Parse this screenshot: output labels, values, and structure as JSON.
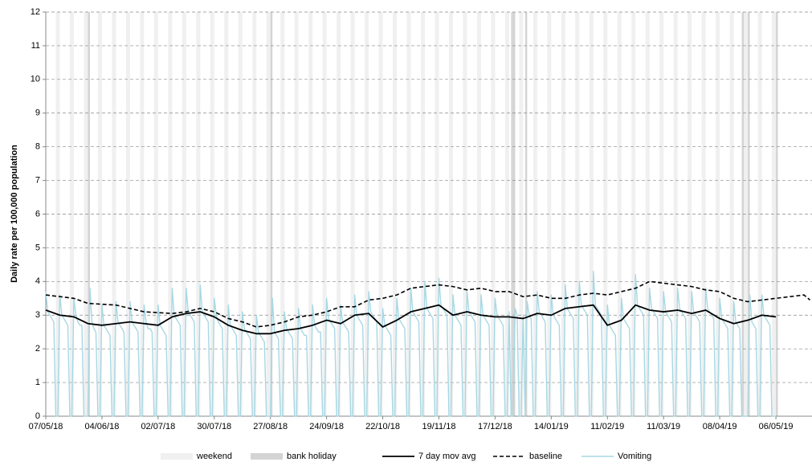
{
  "chart_data": {
    "type": "line",
    "y_label": "Daily rate per 100,000 population",
    "xlim": [
      0,
      382
    ],
    "ylim": [
      0,
      12
    ],
    "yticks": [
      0,
      1,
      2,
      3,
      4,
      5,
      6,
      7,
      8,
      9,
      10,
      11,
      12
    ],
    "xticks": [
      {
        "value": 0,
        "label": "07/05/18"
      },
      {
        "value": 28,
        "label": "04/06/18"
      },
      {
        "value": 56,
        "label": "02/07/18"
      },
      {
        "value": 84,
        "label": "30/07/18"
      },
      {
        "value": 112,
        "label": "27/08/18"
      },
      {
        "value": 140,
        "label": "24/09/18"
      },
      {
        "value": 168,
        "label": "22/10/18"
      },
      {
        "value": 196,
        "label": "19/11/18"
      },
      {
        "value": 224,
        "label": "17/12/18"
      },
      {
        "value": 252,
        "label": "14/01/19"
      },
      {
        "value": 280,
        "label": "11/02/19"
      },
      {
        "value": 308,
        "label": "11/03/19"
      },
      {
        "value": 336,
        "label": "08/04/19"
      },
      {
        "value": 364,
        "label": "06/05/19"
      }
    ],
    "grid": true,
    "x": [
      0,
      1,
      2,
      3,
      4,
      5,
      6,
      7,
      8,
      9,
      10,
      11,
      12,
      13,
      14,
      15,
      16,
      17,
      18,
      19,
      20,
      21,
      22,
      23,
      24,
      25,
      26,
      27,
      28,
      29,
      30,
      31,
      32,
      33,
      34,
      35,
      36,
      37,
      38,
      39,
      40,
      41,
      42,
      43,
      44,
      45,
      46,
      47,
      48,
      49,
      50,
      51,
      52,
      53,
      54,
      55,
      56,
      57,
      58,
      59,
      60,
      61,
      62,
      63,
      64,
      65,
      66,
      67,
      68,
      69,
      70,
      71,
      72,
      73,
      74,
      75,
      76,
      77,
      78,
      79,
      80,
      81,
      82,
      83,
      84,
      85,
      86,
      87,
      88,
      89,
      90,
      91,
      92,
      93,
      94,
      95,
      96,
      97,
      98,
      99,
      100,
      101,
      102,
      103,
      104,
      105,
      106,
      107,
      108,
      109,
      110,
      111,
      112,
      113,
      114,
      115,
      116,
      117,
      118,
      119,
      120,
      121,
      122,
      123,
      124,
      125,
      126,
      127,
      128,
      129,
      130,
      131,
      132,
      133,
      134,
      135,
      136,
      137,
      138,
      139,
      140,
      141,
      142,
      143,
      144,
      145,
      146,
      147,
      148,
      149,
      150,
      151,
      152,
      153,
      154,
      155,
      156,
      157,
      158,
      159,
      160,
      161,
      162,
      163,
      164,
      165,
      166,
      167,
      168,
      169,
      170,
      171,
      172,
      173,
      174,
      175,
      176,
      177,
      178,
      179,
      180,
      181,
      182,
      183,
      184,
      185,
      186,
      187,
      188,
      189,
      190,
      191,
      192,
      193,
      194,
      195,
      196,
      197,
      198,
      199,
      200,
      201,
      202,
      203,
      204,
      205,
      206,
      207,
      208,
      209,
      210,
      211,
      212,
      213,
      214,
      215,
      216,
      217,
      218,
      219,
      220,
      221,
      222,
      223,
      224,
      225,
      226,
      227,
      228,
      229,
      230,
      231,
      232,
      233,
      234,
      235,
      236,
      237,
      238,
      239,
      240,
      241,
      242,
      243,
      244,
      245,
      246,
      247,
      248,
      249,
      250,
      251,
      252,
      253,
      254,
      255,
      256,
      257,
      258,
      259,
      260,
      261,
      262,
      263,
      264,
      265,
      266,
      267,
      268,
      269,
      270,
      271,
      272,
      273,
      274,
      275,
      276,
      277,
      278,
      279,
      280,
      281,
      282,
      283,
      284,
      285,
      286,
      287,
      288,
      289,
      290,
      291,
      292,
      293,
      294,
      295,
      296,
      297,
      298,
      299,
      300,
      301,
      302,
      303,
      304,
      305,
      306,
      307,
      308,
      309,
      310,
      311,
      312,
      313,
      314,
      315,
      316,
      317,
      318,
      319,
      320,
      321,
      322,
      323,
      324,
      325,
      326,
      327,
      328,
      329,
      330,
      331,
      332,
      333,
      334,
      335,
      336,
      337,
      338,
      339,
      340,
      341,
      342,
      343,
      344,
      345,
      346,
      347,
      348,
      349,
      350,
      351,
      352,
      353,
      354,
      355,
      356,
      357,
      358,
      359,
      360,
      361,
      362,
      363,
      364
    ],
    "series": [
      {
        "name": "weekend",
        "kind": "band",
        "width": 2,
        "color": "#f0f0f0",
        "x": [
          5,
          12,
          19,
          26,
          33,
          40,
          47,
          54,
          61,
          68,
          75,
          82,
          89,
          96,
          103,
          110,
          117,
          124,
          131,
          138,
          145,
          152,
          159,
          166,
          173,
          180,
          187,
          194,
          201,
          208,
          215,
          222,
          229,
          236,
          243,
          250,
          257,
          264,
          271,
          278,
          285,
          292,
          299,
          306,
          313,
          320,
          327,
          334,
          341,
          348,
          355,
          362
        ]
      },
      {
        "name": "bank holiday",
        "kind": "band",
        "width": 1,
        "color": "#d4d4d4",
        "x": [
          21,
          112,
          232,
          233,
          239,
          347,
          350,
          364
        ]
      },
      {
        "name": "7 day mov avg",
        "kind": "line",
        "color": "#000000",
        "width": 1.8,
        "x": [
          0,
          7,
          14,
          21,
          28,
          35,
          42,
          49,
          56,
          63,
          70,
          77,
          84,
          91,
          98,
          105,
          112,
          119,
          126,
          133,
          140,
          147,
          154,
          161,
          168,
          175,
          182,
          189,
          196,
          203,
          210,
          217,
          224,
          231,
          238,
          245,
          252,
          259,
          266,
          273,
          280,
          287,
          294,
          301,
          308,
          315,
          322,
          329,
          336,
          343,
          350,
          357,
          364
        ],
        "values": [
          3.15,
          3.0,
          2.95,
          2.75,
          2.7,
          2.75,
          2.8,
          2.75,
          2.7,
          2.95,
          3.05,
          3.1,
          2.95,
          2.7,
          2.55,
          2.45,
          2.45,
          2.55,
          2.6,
          2.7,
          2.85,
          2.75,
          3.0,
          3.05,
          2.65,
          2.85,
          3.1,
          3.2,
          3.3,
          3.0,
          3.1,
          3.0,
          2.95,
          2.95,
          2.9,
          3.05,
          3.0,
          3.2,
          3.25,
          3.3,
          2.7,
          2.85,
          3.3,
          3.15,
          3.1,
          3.15,
          3.05,
          3.15,
          2.9,
          2.75,
          2.85,
          3.0,
          2.95
        ]
      },
      {
        "name": "baseline",
        "kind": "line",
        "dash": true,
        "color": "#000000",
        "width": 1.6,
        "x": [
          0,
          14,
          21,
          35,
          49,
          63,
          70,
          77,
          84,
          91,
          98,
          105,
          112,
          119,
          126,
          133,
          140,
          147,
          154,
          161,
          168,
          175,
          182,
          189,
          196,
          203,
          210,
          217,
          224,
          231,
          238,
          245,
          252,
          259,
          266,
          273,
          280,
          287,
          294,
          301,
          308,
          315,
          322,
          329,
          336,
          343,
          350,
          357,
          364,
          371,
          378,
          381
        ],
        "values": [
          3.6,
          3.5,
          3.35,
          3.3,
          3.1,
          3.05,
          3.1,
          3.2,
          3.1,
          2.9,
          2.8,
          2.65,
          2.7,
          2.8,
          2.95,
          3.0,
          3.1,
          3.25,
          3.25,
          3.45,
          3.5,
          3.6,
          3.8,
          3.85,
          3.9,
          3.85,
          3.75,
          3.8,
          3.7,
          3.7,
          3.55,
          3.6,
          3.5,
          3.5,
          3.6,
          3.65,
          3.6,
          3.7,
          3.8,
          4.0,
          3.95,
          3.9,
          3.85,
          3.75,
          3.7,
          3.5,
          3.4,
          3.45,
          3.5,
          3.55,
          3.6,
          3.45
        ]
      },
      {
        "name": "Vomiting",
        "kind": "line",
        "color": "#a7d8e4",
        "width": 1.4,
        "values": [
          3.7,
          3.1,
          3.0,
          2.9,
          2.8,
          0,
          0,
          3.6,
          3.0,
          2.9,
          2.8,
          2.7,
          0,
          0,
          3.5,
          3.0,
          2.8,
          2.7,
          2.7,
          0,
          0,
          0,
          3.8,
          2.8,
          2.6,
          2.5,
          0,
          0,
          3.3,
          2.7,
          2.6,
          2.5,
          2.4,
          0,
          0,
          3.4,
          2.8,
          2.7,
          2.6,
          2.5,
          0,
          0,
          3.4,
          2.8,
          2.7,
          2.6,
          2.5,
          0,
          0,
          3.3,
          2.8,
          2.6,
          2.6,
          2.5,
          0,
          0,
          3.3,
          2.7,
          2.6,
          2.5,
          2.4,
          0,
          0,
          3.8,
          3.0,
          2.9,
          2.8,
          2.7,
          0,
          0,
          3.8,
          3.1,
          3.0,
          2.9,
          2.8,
          0,
          0,
          3.9,
          3.1,
          3.0,
          2.9,
          2.8,
          0,
          0,
          3.5,
          3.0,
          2.8,
          2.7,
          2.6,
          0,
          0,
          3.3,
          2.7,
          2.6,
          2.5,
          2.4,
          0,
          0,
          3.1,
          2.6,
          2.5,
          2.4,
          2.3,
          0,
          0,
          3.0,
          2.5,
          2.4,
          2.3,
          2.2,
          0,
          0,
          0,
          3.5,
          2.5,
          2.4,
          2.3,
          0,
          0,
          3.1,
          2.6,
          2.5,
          2.4,
          2.3,
          0,
          0,
          3.2,
          2.6,
          2.5,
          2.4,
          2.4,
          0,
          0,
          3.3,
          2.7,
          2.6,
          2.5,
          2.5,
          0,
          0,
          3.5,
          2.9,
          2.8,
          2.7,
          2.6,
          0,
          0,
          3.3,
          2.8,
          2.7,
          2.6,
          2.5,
          0,
          0,
          3.6,
          3.0,
          2.9,
          2.8,
          2.7,
          0,
          0,
          3.7,
          3.1,
          3.0,
          2.9,
          2.8,
          0,
          0,
          3.2,
          2.7,
          2.6,
          2.5,
          2.4,
          0,
          0,
          3.5,
          2.9,
          2.8,
          2.7,
          2.6,
          0,
          0,
          3.8,
          3.1,
          3.0,
          2.9,
          2.8,
          0,
          0,
          4.0,
          3.2,
          3.1,
          3.0,
          2.9,
          0,
          0,
          4.1,
          3.3,
          3.2,
          3.1,
          3.0,
          0,
          0,
          3.6,
          3.0,
          2.9,
          2.8,
          2.7,
          0,
          0,
          3.7,
          3.1,
          3.0,
          2.9,
          2.8,
          0,
          0,
          3.6,
          3.0,
          2.9,
          2.8,
          2.7,
          0,
          0,
          3.5,
          3.0,
          2.9,
          2.8,
          2.7,
          0,
          0,
          3.1,
          0,
          0,
          3.2,
          3.0,
          0,
          0,
          3.0,
          0,
          3.4,
          3.0,
          2.9,
          0,
          0,
          3.7,
          3.1,
          3.0,
          2.9,
          2.8,
          0,
          0,
          3.6,
          3.0,
          2.9,
          2.8,
          2.7,
          0,
          0,
          3.9,
          3.2,
          3.1,
          3.0,
          2.9,
          0,
          0,
          4.0,
          3.3,
          3.2,
          3.1,
          3.0,
          0,
          0,
          4.3,
          3.3,
          3.2,
          3.1,
          3.0,
          0,
          0,
          3.3,
          2.7,
          2.6,
          2.5,
          2.4,
          0,
          0,
          3.5,
          2.9,
          2.8,
          2.7,
          2.6,
          0,
          0,
          4.2,
          3.3,
          3.2,
          3.1,
          3.0,
          0,
          0,
          3.8,
          3.2,
          3.1,
          3.0,
          2.9,
          0,
          0,
          3.7,
          3.1,
          3.0,
          2.9,
          2.8,
          0,
          0,
          3.8,
          3.2,
          3.1,
          3.0,
          2.9,
          0,
          0,
          3.7,
          3.1,
          3.0,
          2.9,
          2.8,
          0,
          0,
          3.8,
          3.2,
          3.1,
          3.0,
          2.9,
          0,
          0,
          3.5,
          2.9,
          2.8,
          2.7,
          2.6,
          0,
          0,
          3.4,
          2.8,
          2.7,
          2.6,
          0,
          0,
          0,
          0,
          3.6,
          2.8,
          2.7,
          2.6,
          0,
          0,
          3.6,
          3.0,
          2.9,
          2.8,
          2.7,
          0,
          0,
          0
        ]
      }
    ]
  }
}
